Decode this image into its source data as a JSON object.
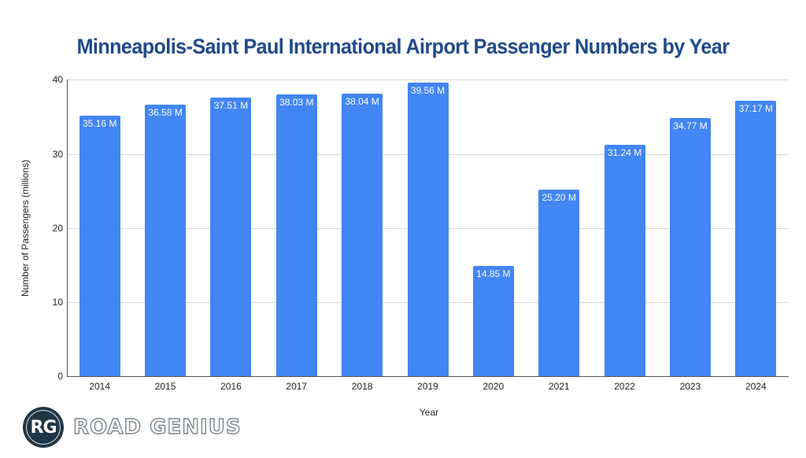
{
  "title": "Minneapolis-Saint Paul International Airport Passenger Numbers by Year",
  "brand": {
    "initials": "RG",
    "name": "ROAD GENIUS",
    "circle_color": "#213645"
  },
  "colors": {
    "bar": "#4285f4",
    "title": "#1f4a8a",
    "grid": "#d9d9d9"
  },
  "axes": {
    "xlabel": "Year",
    "ylabel": "Number of Passengers (millions)",
    "yticks": [
      "0",
      "10",
      "20",
      "30",
      "40"
    ]
  },
  "bars": [
    {
      "year": "2014",
      "value": 35.16,
      "label": "35.16 M"
    },
    {
      "year": "2015",
      "value": 36.58,
      "label": "36.58 M"
    },
    {
      "year": "2016",
      "value": 37.51,
      "label": "37.51 M"
    },
    {
      "year": "2017",
      "value": 38.03,
      "label": "38.03 M"
    },
    {
      "year": "2018",
      "value": 38.04,
      "label": "38.04 M"
    },
    {
      "year": "2019",
      "value": 39.56,
      "label": "39.56 M"
    },
    {
      "year": "2020",
      "value": 14.85,
      "label": "14.85 M"
    },
    {
      "year": "2021",
      "value": 25.2,
      "label": "25.20 M"
    },
    {
      "year": "2022",
      "value": 31.24,
      "label": "31.24 M"
    },
    {
      "year": "2023",
      "value": 34.77,
      "label": "34.77 M"
    },
    {
      "year": "2024",
      "value": 37.17,
      "label": "37.17 M"
    }
  ],
  "chart_data": {
    "type": "bar",
    "title": "Minneapolis-Saint Paul International Airport Passenger Numbers by Year",
    "categories": [
      "2014",
      "2015",
      "2016",
      "2017",
      "2018",
      "2019",
      "2020",
      "2021",
      "2022",
      "2023",
      "2024"
    ],
    "values": [
      35.16,
      36.58,
      37.51,
      38.03,
      38.04,
      39.56,
      14.85,
      25.2,
      31.24,
      34.77,
      37.17
    ],
    "data_labels": [
      "35.16 M",
      "36.58 M",
      "37.51 M",
      "38.03 M",
      "38.04 M",
      "39.56 M",
      "14.85 M",
      "25.20 M",
      "31.24 M",
      "34.77 M",
      "37.17 M"
    ],
    "xlabel": "Year",
    "ylabel": "Number of Passengers (millions)",
    "ylim": [
      0,
      40
    ],
    "yticks": [
      0,
      10,
      20,
      30,
      40
    ],
    "grid": true,
    "legend": null
  }
}
